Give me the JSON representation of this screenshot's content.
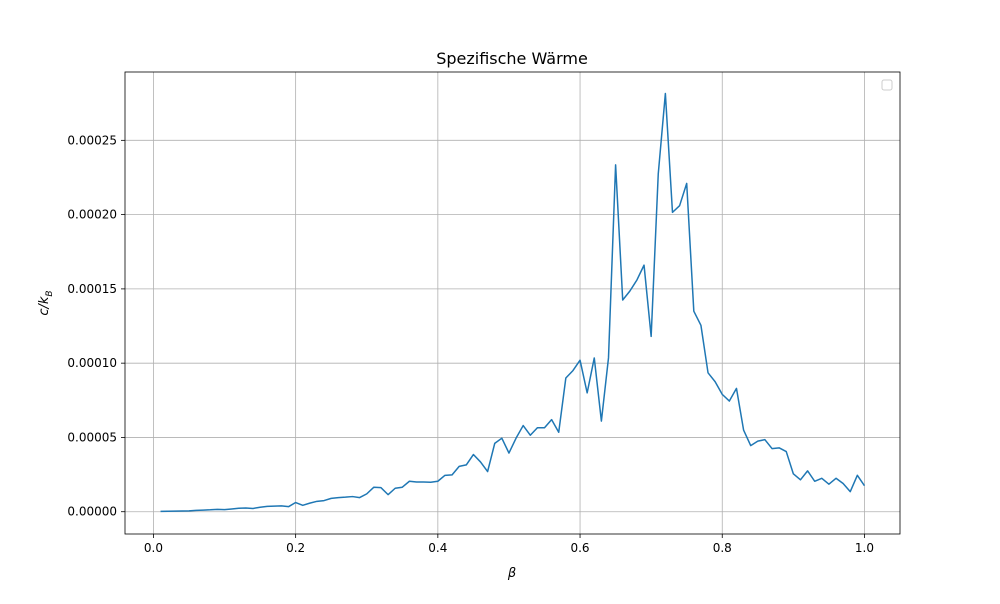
{
  "chart_data": {
    "type": "line",
    "title": "Spezifische Wärme",
    "xlabel": "β",
    "ylabel_main": "c/k",
    "ylabel_sub": "B",
    "xlim": [
      -0.04,
      1.05
    ],
    "ylim": [
      -1.5e-05,
      0.000296
    ],
    "grid": true,
    "legend_placement": "top-right",
    "line_color": "#1f77b4",
    "xticks": [
      {
        "value": 0.0,
        "label": "0.0"
      },
      {
        "value": 0.2,
        "label": "0.2"
      },
      {
        "value": 0.4,
        "label": "0.4"
      },
      {
        "value": 0.6,
        "label": "0.6"
      },
      {
        "value": 0.8,
        "label": "0.8"
      },
      {
        "value": 1.0,
        "label": "1.0"
      }
    ],
    "yticks": [
      {
        "value": 0.0,
        "label": "0.00000"
      },
      {
        "value": 5e-05,
        "label": "0.00005"
      },
      {
        "value": 0.0001,
        "label": "0.00010"
      },
      {
        "value": 0.00015,
        "label": "0.00015"
      },
      {
        "value": 0.0002,
        "label": "0.00020"
      },
      {
        "value": 0.00025,
        "label": "0.00025"
      }
    ],
    "series": [
      {
        "x": [
          0.01,
          0.02,
          0.03,
          0.04,
          0.05,
          0.06,
          0.07,
          0.08,
          0.09,
          0.1,
          0.11,
          0.12,
          0.13,
          0.14,
          0.15,
          0.16,
          0.17,
          0.18,
          0.19,
          0.2,
          0.21,
          0.22,
          0.23,
          0.24,
          0.25,
          0.26,
          0.27,
          0.28,
          0.29,
          0.3,
          0.31,
          0.32,
          0.33,
          0.34,
          0.35,
          0.36,
          0.37,
          0.38,
          0.39,
          0.4,
          0.41,
          0.42,
          0.43,
          0.44,
          0.45,
          0.46,
          0.47,
          0.48,
          0.49,
          0.5,
          0.51,
          0.52,
          0.53,
          0.54,
          0.55,
          0.56,
          0.57,
          0.58,
          0.59,
          0.6,
          0.61,
          0.62,
          0.63,
          0.64,
          0.65,
          0.66,
          0.67,
          0.68,
          0.69,
          0.7,
          0.71,
          0.72,
          0.73,
          0.74,
          0.75,
          0.76,
          0.77,
          0.78,
          0.79,
          0.8,
          0.81,
          0.82,
          0.83,
          0.84,
          0.85,
          0.86,
          0.87,
          0.88,
          0.89,
          0.9,
          0.91,
          0.92,
          0.93,
          0.94,
          0.95,
          0.96,
          0.97,
          0.98,
          0.99,
          1.0
        ],
        "y": [
          2e-07,
          3e-07,
          4e-07,
          5e-07,
          6e-07,
          9e-07,
          1.1e-06,
          1.3e-06,
          1.6e-06,
          1.4e-06,
          1.8e-06,
          2.3e-06,
          2.5e-06,
          2.2e-06,
          3e-06,
          3.6e-06,
          3.8e-06,
          3.9e-06,
          3.4e-06,
          6.2e-06,
          4.3e-06,
          5.8e-06,
          7e-06,
          7.5e-06,
          9e-06,
          9.5e-06,
          9.8e-06,
          1.02e-05,
          9.5e-06,
          1.2e-05,
          1.65e-05,
          1.62e-05,
          1.15e-05,
          1.58e-05,
          1.65e-05,
          2.05e-05,
          2e-05,
          2e-05,
          1.98e-05,
          2.05e-05,
          2.45e-05,
          2.48e-05,
          3.05e-05,
          3.15e-05,
          3.85e-05,
          3.35e-05,
          2.7e-05,
          4.6e-05,
          4.95e-05,
          3.95e-05,
          4.95e-05,
          5.8e-05,
          5.15e-05,
          5.65e-05,
          5.65e-05,
          6.2e-05,
          5.35e-05,
          9e-05,
          9.5e-05,
          0.000102,
          8e-05,
          0.0001035,
          6.1e-05,
          0.0001035,
          0.0002335,
          0.0001425,
          0.0001485,
          0.000156,
          0.000166,
          0.000118,
          0.0002275,
          0.0002815,
          0.0002015,
          0.000206,
          0.000221,
          0.000135,
          0.0001255,
          9.35e-05,
          8.75e-05,
          7.9e-05,
          7.45e-05,
          8.3e-05,
          5.5e-05,
          4.45e-05,
          4.75e-05,
          4.85e-05,
          4.25e-05,
          4.3e-05,
          4.05e-05,
          2.55e-05,
          2.15e-05,
          2.75e-05,
          2.05e-05,
          2.25e-05,
          1.85e-05,
          2.25e-05,
          1.9e-05,
          1.35e-05,
          2.45e-05,
          1.75e-05
        ]
      }
    ]
  }
}
